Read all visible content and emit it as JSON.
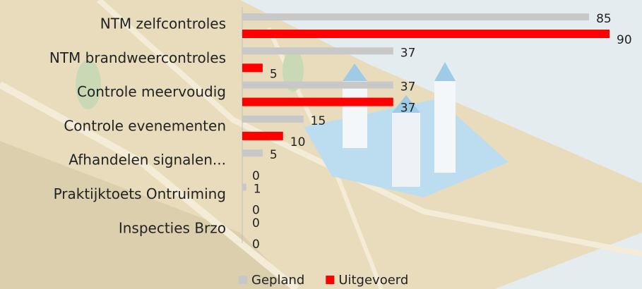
{
  "chart_data": {
    "type": "bar",
    "orientation": "horizontal",
    "categories": [
      "NTM zelfcontroles",
      "NTM brandweercontroles",
      "Controle meervoudig",
      "Controle evenementen",
      "Afhandelen signalen...",
      "Praktijktoets Ontruiming",
      "Inspecties Brzo"
    ],
    "series": [
      {
        "name": "Gepland",
        "color": "#c8c8c8",
        "values": [
          85,
          37,
          37,
          15,
          5,
          1,
          0
        ]
      },
      {
        "name": "Uitgevoerd",
        "color": "#ff0000",
        "values": [
          90,
          5,
          37,
          10,
          0,
          0,
          0
        ]
      }
    ],
    "xlim": [
      0,
      90
    ],
    "legend": "bottom"
  }
}
